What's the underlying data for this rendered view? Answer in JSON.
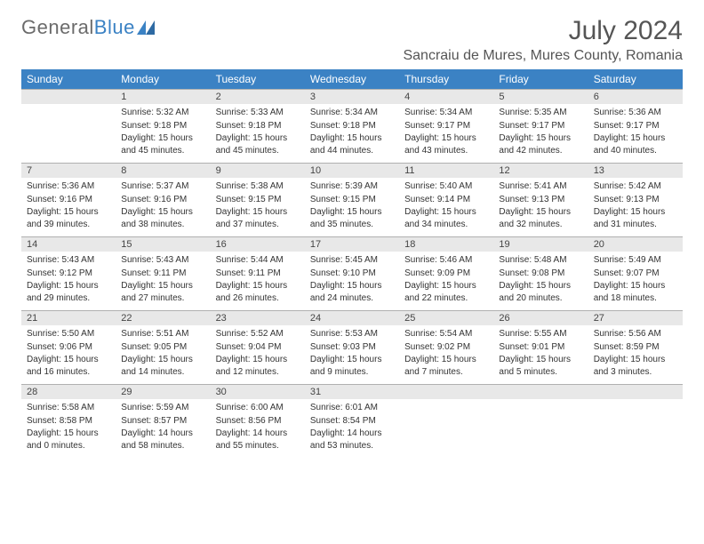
{
  "brand": {
    "part1": "General",
    "part2": "Blue"
  },
  "title": "July 2024",
  "subtitle": "Sancraiu de Mures, Mures County, Romania",
  "colors": {
    "header_bg": "#3b82c4",
    "header_text": "#ffffff",
    "daynum_bg": "#e8e8e8",
    "border": "#b0b0b0",
    "text": "#333333",
    "title": "#555555"
  },
  "days_of_week": [
    "Sunday",
    "Monday",
    "Tuesday",
    "Wednesday",
    "Thursday",
    "Friday",
    "Saturday"
  ],
  "weeks": [
    [
      null,
      {
        "n": "1",
        "sr": "Sunrise: 5:32 AM",
        "ss": "Sunset: 9:18 PM",
        "dl": "Daylight: 15 hours and 45 minutes."
      },
      {
        "n": "2",
        "sr": "Sunrise: 5:33 AM",
        "ss": "Sunset: 9:18 PM",
        "dl": "Daylight: 15 hours and 45 minutes."
      },
      {
        "n": "3",
        "sr": "Sunrise: 5:34 AM",
        "ss": "Sunset: 9:18 PM",
        "dl": "Daylight: 15 hours and 44 minutes."
      },
      {
        "n": "4",
        "sr": "Sunrise: 5:34 AM",
        "ss": "Sunset: 9:17 PM",
        "dl": "Daylight: 15 hours and 43 minutes."
      },
      {
        "n": "5",
        "sr": "Sunrise: 5:35 AM",
        "ss": "Sunset: 9:17 PM",
        "dl": "Daylight: 15 hours and 42 minutes."
      },
      {
        "n": "6",
        "sr": "Sunrise: 5:36 AM",
        "ss": "Sunset: 9:17 PM",
        "dl": "Daylight: 15 hours and 40 minutes."
      }
    ],
    [
      {
        "n": "7",
        "sr": "Sunrise: 5:36 AM",
        "ss": "Sunset: 9:16 PM",
        "dl": "Daylight: 15 hours and 39 minutes."
      },
      {
        "n": "8",
        "sr": "Sunrise: 5:37 AM",
        "ss": "Sunset: 9:16 PM",
        "dl": "Daylight: 15 hours and 38 minutes."
      },
      {
        "n": "9",
        "sr": "Sunrise: 5:38 AM",
        "ss": "Sunset: 9:15 PM",
        "dl": "Daylight: 15 hours and 37 minutes."
      },
      {
        "n": "10",
        "sr": "Sunrise: 5:39 AM",
        "ss": "Sunset: 9:15 PM",
        "dl": "Daylight: 15 hours and 35 minutes."
      },
      {
        "n": "11",
        "sr": "Sunrise: 5:40 AM",
        "ss": "Sunset: 9:14 PM",
        "dl": "Daylight: 15 hours and 34 minutes."
      },
      {
        "n": "12",
        "sr": "Sunrise: 5:41 AM",
        "ss": "Sunset: 9:13 PM",
        "dl": "Daylight: 15 hours and 32 minutes."
      },
      {
        "n": "13",
        "sr": "Sunrise: 5:42 AM",
        "ss": "Sunset: 9:13 PM",
        "dl": "Daylight: 15 hours and 31 minutes."
      }
    ],
    [
      {
        "n": "14",
        "sr": "Sunrise: 5:43 AM",
        "ss": "Sunset: 9:12 PM",
        "dl": "Daylight: 15 hours and 29 minutes."
      },
      {
        "n": "15",
        "sr": "Sunrise: 5:43 AM",
        "ss": "Sunset: 9:11 PM",
        "dl": "Daylight: 15 hours and 27 minutes."
      },
      {
        "n": "16",
        "sr": "Sunrise: 5:44 AM",
        "ss": "Sunset: 9:11 PM",
        "dl": "Daylight: 15 hours and 26 minutes."
      },
      {
        "n": "17",
        "sr": "Sunrise: 5:45 AM",
        "ss": "Sunset: 9:10 PM",
        "dl": "Daylight: 15 hours and 24 minutes."
      },
      {
        "n": "18",
        "sr": "Sunrise: 5:46 AM",
        "ss": "Sunset: 9:09 PM",
        "dl": "Daylight: 15 hours and 22 minutes."
      },
      {
        "n": "19",
        "sr": "Sunrise: 5:48 AM",
        "ss": "Sunset: 9:08 PM",
        "dl": "Daylight: 15 hours and 20 minutes."
      },
      {
        "n": "20",
        "sr": "Sunrise: 5:49 AM",
        "ss": "Sunset: 9:07 PM",
        "dl": "Daylight: 15 hours and 18 minutes."
      }
    ],
    [
      {
        "n": "21",
        "sr": "Sunrise: 5:50 AM",
        "ss": "Sunset: 9:06 PM",
        "dl": "Daylight: 15 hours and 16 minutes."
      },
      {
        "n": "22",
        "sr": "Sunrise: 5:51 AM",
        "ss": "Sunset: 9:05 PM",
        "dl": "Daylight: 15 hours and 14 minutes."
      },
      {
        "n": "23",
        "sr": "Sunrise: 5:52 AM",
        "ss": "Sunset: 9:04 PM",
        "dl": "Daylight: 15 hours and 12 minutes."
      },
      {
        "n": "24",
        "sr": "Sunrise: 5:53 AM",
        "ss": "Sunset: 9:03 PM",
        "dl": "Daylight: 15 hours and 9 minutes."
      },
      {
        "n": "25",
        "sr": "Sunrise: 5:54 AM",
        "ss": "Sunset: 9:02 PM",
        "dl": "Daylight: 15 hours and 7 minutes."
      },
      {
        "n": "26",
        "sr": "Sunrise: 5:55 AM",
        "ss": "Sunset: 9:01 PM",
        "dl": "Daylight: 15 hours and 5 minutes."
      },
      {
        "n": "27",
        "sr": "Sunrise: 5:56 AM",
        "ss": "Sunset: 8:59 PM",
        "dl": "Daylight: 15 hours and 3 minutes."
      }
    ],
    [
      {
        "n": "28",
        "sr": "Sunrise: 5:58 AM",
        "ss": "Sunset: 8:58 PM",
        "dl": "Daylight: 15 hours and 0 minutes."
      },
      {
        "n": "29",
        "sr": "Sunrise: 5:59 AM",
        "ss": "Sunset: 8:57 PM",
        "dl": "Daylight: 14 hours and 58 minutes."
      },
      {
        "n": "30",
        "sr": "Sunrise: 6:00 AM",
        "ss": "Sunset: 8:56 PM",
        "dl": "Daylight: 14 hours and 55 minutes."
      },
      {
        "n": "31",
        "sr": "Sunrise: 6:01 AM",
        "ss": "Sunset: 8:54 PM",
        "dl": "Daylight: 14 hours and 53 minutes."
      },
      null,
      null,
      null
    ]
  ]
}
